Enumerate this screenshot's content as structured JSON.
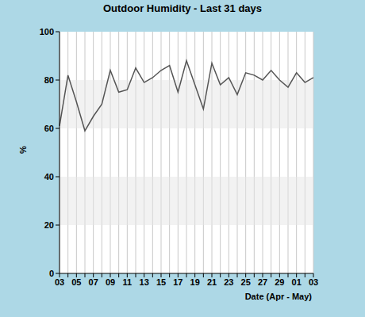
{
  "chart_data": {
    "type": "line",
    "title": "Outdoor Humidity - Last 31 days",
    "x_label": "Date (Apr - May)",
    "y_label": "%",
    "categories": [
      "03",
      null,
      "05",
      null,
      "07",
      null,
      "09",
      null,
      "11",
      null,
      "13",
      null,
      "15",
      null,
      "17",
      null,
      "19",
      null,
      "21",
      null,
      "23",
      null,
      "25",
      null,
      "27",
      null,
      "29",
      null,
      "01",
      null,
      "03"
    ],
    "values": [
      61,
      82,
      71,
      59,
      65,
      70,
      84,
      75,
      76,
      85,
      79,
      81,
      84,
      86,
      75,
      88,
      78,
      68,
      87,
      78,
      81,
      74,
      83,
      82,
      80,
      84,
      80,
      77,
      83,
      79,
      81
    ],
    "color": "#555555",
    "ylim": [
      0,
      100
    ],
    "yticks": [
      0,
      20,
      40,
      60,
      80,
      100
    ],
    "grid": true
  }
}
